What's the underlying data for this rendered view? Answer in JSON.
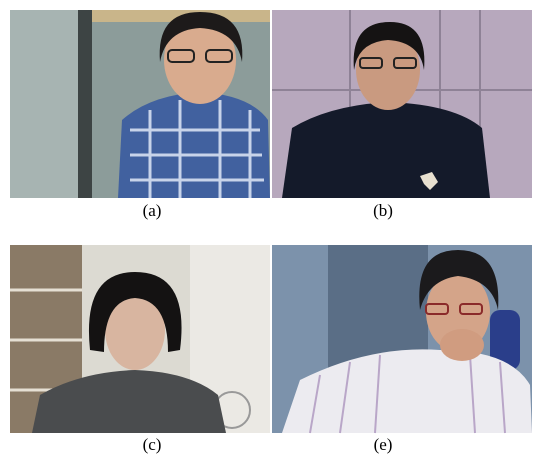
{
  "figure": {
    "panels": [
      {
        "label": "(a)"
      },
      {
        "label": "(b)"
      },
      {
        "label": "(c)"
      },
      {
        "label": "(e)"
      }
    ]
  }
}
